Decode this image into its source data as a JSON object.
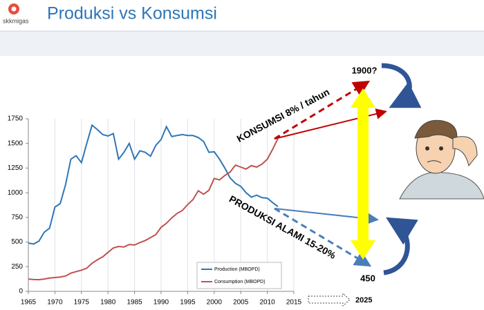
{
  "logo": "skkmigas",
  "chart_data": {
    "type": "line",
    "title": "Produksi vs Konsumsi",
    "x": [
      1965,
      1966,
      1967,
      1968,
      1969,
      1970,
      1971,
      1972,
      1973,
      1974,
      1975,
      1976,
      1977,
      1978,
      1979,
      1980,
      1981,
      1982,
      1983,
      1984,
      1985,
      1986,
      1987,
      1988,
      1989,
      1990,
      1991,
      1992,
      1993,
      1994,
      1995,
      1996,
      1997,
      1998,
      1999,
      2000,
      2001,
      2002,
      2003,
      2004,
      2005,
      2006,
      2007,
      2008,
      2009,
      2010,
      2011,
      2012
    ],
    "series": [
      {
        "name": "Production (MBOPD)",
        "color": "#2e75b6",
        "values": [
          490,
          480,
          510,
          600,
          640,
          855,
          890,
          1080,
          1340,
          1375,
          1305,
          1500,
          1685,
          1640,
          1590,
          1575,
          1600,
          1340,
          1410,
          1500,
          1340,
          1425,
          1410,
          1370,
          1480,
          1540,
          1670,
          1570,
          1580,
          1590,
          1580,
          1580,
          1560,
          1520,
          1410,
          1415,
          1340,
          1250,
          1150,
          1095,
          1065,
          1000,
          955,
          975,
          950,
          945,
          900,
          860
        ]
      },
      {
        "name": "Consumption (MBOPD)",
        "color": "#c0504d",
        "values": [
          125,
          120,
          118,
          125,
          135,
          140,
          145,
          155,
          185,
          200,
          215,
          235,
          285,
          320,
          350,
          395,
          440,
          455,
          450,
          475,
          470,
          495,
          515,
          545,
          575,
          650,
          690,
          745,
          790,
          820,
          880,
          930,
          1020,
          985,
          1025,
          1145,
          1130,
          1175,
          1210,
          1280,
          1260,
          1240,
          1275,
          1260,
          1290,
          1340,
          1440,
          1550
        ]
      }
    ],
    "xlim": [
      1965,
      2015
    ],
    "xticks": [
      1965,
      1970,
      1975,
      1980,
      1985,
      1990,
      1995,
      2000,
      2005,
      2010,
      2015
    ],
    "ylim": [
      0,
      1750
    ],
    "yticks": [
      0,
      250,
      500,
      750,
      1000,
      1250,
      1500,
      1750
    ],
    "grid": "x",
    "legend": "lower right",
    "annotations": [
      "KONSUMSI  8% / tahun",
      "PRODUKSI ALAMI 15-20%",
      "1900?",
      "450",
      "2025"
    ]
  }
}
